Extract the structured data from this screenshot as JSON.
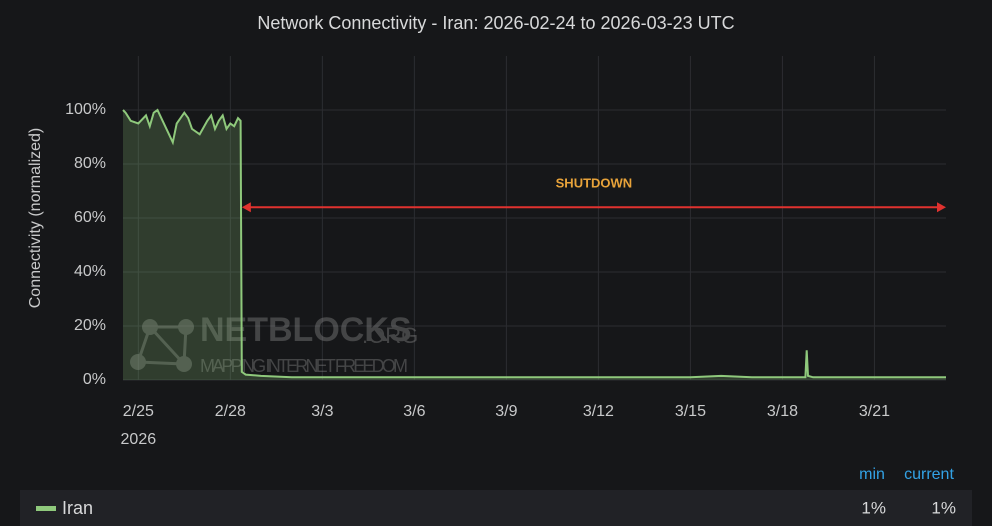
{
  "chart_data": {
    "type": "line",
    "title": "Network Connectivity - Iran: 2026-02-24 to 2026-03-23 UTC",
    "y_label": "Connectivity (normalized)",
    "x": [
      "2026-02-24T12:00",
      "2026-02-24T14:00",
      "2026-02-24T18:00",
      "2026-02-25T00:00",
      "2026-02-25T06:00",
      "2026-02-25T09:00",
      "2026-02-25T12:00",
      "2026-02-25T15:00",
      "2026-02-25T18:00",
      "2026-02-26T00:00",
      "2026-02-26T03:00",
      "2026-02-26T06:00",
      "2026-02-26T12:00",
      "2026-02-26T15:00",
      "2026-02-26T18:00",
      "2026-02-27T00:00",
      "2026-02-27T06:00",
      "2026-02-27T09:00",
      "2026-02-27T12:00",
      "2026-02-27T15:00",
      "2026-02-27T18:00",
      "2026-02-27T21:00",
      "2026-02-28T00:00",
      "2026-02-28T03:00",
      "2026-02-28T06:00",
      "2026-02-28T08:00",
      "2026-02-28T09:00",
      "2026-02-28T12:00",
      "2026-03-01T00:00",
      "2026-03-02T00:00",
      "2026-03-03T00:00",
      "2026-03-04T00:00",
      "2026-03-05T00:00",
      "2026-03-06T00:00",
      "2026-03-07T00:00",
      "2026-03-08T00:00",
      "2026-03-09T00:00",
      "2026-03-10T00:00",
      "2026-03-11T00:00",
      "2026-03-12T00:00",
      "2026-03-13T00:00",
      "2026-03-14T00:00",
      "2026-03-15T00:00",
      "2026-03-16T00:00",
      "2026-03-17T00:00",
      "2026-03-18T00:00",
      "2026-03-18T18:00",
      "2026-03-18T19:00",
      "2026-03-18T20:00",
      "2026-03-19T00:00",
      "2026-03-20T00:00",
      "2026-03-21T00:00",
      "2026-03-22T00:00",
      "2026-03-23T00:00",
      "2026-03-23T08:00"
    ],
    "series": [
      {
        "name": "Iran",
        "color": "#8fc97c",
        "values": [
          100,
          99,
          96,
          95,
          98,
          94,
          99,
          100,
          97,
          91,
          88,
          95,
          99,
          97,
          93,
          91,
          96,
          98,
          93,
          96,
          98,
          93,
          95,
          94,
          97,
          96,
          3,
          2,
          1.5,
          1,
          1,
          1,
          1,
          1,
          1,
          1,
          1,
          1,
          1,
          1,
          1,
          1,
          1,
          1.5,
          1,
          1,
          1,
          11,
          1.5,
          1,
          1,
          1,
          1,
          1,
          1
        ]
      }
    ],
    "xlim": [
      "2026-02-24T12:00",
      "2026-03-23T08:00"
    ],
    "xticks": [
      {
        "value": "2026-02-25",
        "label": "2/25"
      },
      {
        "value": "2026-02-28",
        "label": "2/28"
      },
      {
        "value": "2026-03-03",
        "label": "3/3"
      },
      {
        "value": "2026-03-06",
        "label": "3/6"
      },
      {
        "value": "2026-03-09",
        "label": "3/9"
      },
      {
        "value": "2026-03-12",
        "label": "3/12"
      },
      {
        "value": "2026-03-15",
        "label": "3/15"
      },
      {
        "value": "2026-03-18",
        "label": "3/18"
      },
      {
        "value": "2026-03-21",
        "label": "3/21"
      }
    ],
    "xtick_sublabel": "2026",
    "ylim": [
      0,
      120
    ],
    "yticks": [
      {
        "value": 0,
        "label": "0%"
      },
      {
        "value": 20,
        "label": "20%"
      },
      {
        "value": 40,
        "label": "40%"
      },
      {
        "value": 60,
        "label": "60%"
      },
      {
        "value": 80,
        "label": "80%"
      },
      {
        "value": 100,
        "label": "100%"
      }
    ],
    "grid": true,
    "annotation": {
      "text": "SHUTDOWN",
      "x_start": "2026-02-28T09:00",
      "x_end": "2026-03-23T08:00",
      "y": 64,
      "color": "#e0322f",
      "text_color": "#e8a33a"
    },
    "watermark": {
      "name": "NETBLOCKS",
      "suffix": ".ORG",
      "tagline": "MAPPING INTERNET FREEDOM"
    },
    "legend": {
      "columns": [
        "min",
        "current"
      ],
      "values": [
        "1%",
        "1%"
      ]
    }
  }
}
